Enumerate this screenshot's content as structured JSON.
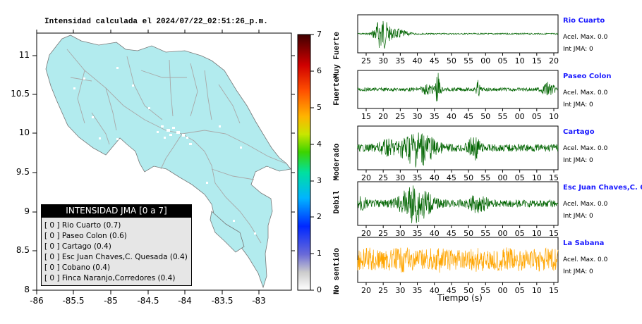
{
  "map": {
    "title": "Intensidad calculada el 2024/07/22_02:51:26_p.m.",
    "x_ticks": [
      "-86",
      "-85.5",
      "-85",
      "-84.5",
      "-84",
      "-83.5",
      "-83"
    ],
    "y_ticks": [
      "11",
      "10.5",
      "10",
      "9.5",
      "9",
      "8.5",
      "8"
    ],
    "land_color": "#b2ebee"
  },
  "colorbar": {
    "ticks": [
      "7",
      "6",
      "5",
      "4",
      "3",
      "2",
      "1",
      "0"
    ],
    "labels": [
      "Muy Fuerte",
      "Fuerte",
      "Moderado",
      "Debil",
      "No sentido"
    ]
  },
  "legend": {
    "title": "INTENSIDAD JMA [0 a 7]",
    "entries": [
      "[ 0 ] Rio Cuarto (0.7)",
      "[ 0 ] Paseo Colon (0.6)",
      "[ 0 ] Cartago (0.4)",
      "[ 0 ] Esc Juan Chaves,C. Quesada (0.4)",
      "[ 0 ] Cobano (0.4)",
      "[ 0 ] Finca Naranjo,Corredores (0.4)"
    ]
  },
  "seismograms": {
    "xlabel": "Tiempo (s)",
    "stations": [
      {
        "name": "Rio Cuarto",
        "accel": "Acel. Max. 0.0",
        "int": "Int JMA: 0",
        "color": "#006400",
        "ticks": [
          "25",
          "30",
          "35",
          "40",
          "45",
          "50",
          "55",
          "00",
          "05",
          "10",
          "15",
          "20"
        ]
      },
      {
        "name": "Paseo Colon",
        "accel": "Acel. Max. 0.0",
        "int": "Int JMA: 0",
        "color": "#006400",
        "ticks": [
          "15",
          "20",
          "25",
          "30",
          "35",
          "40",
          "45",
          "50",
          "55",
          "00",
          "05",
          "10"
        ]
      },
      {
        "name": "Cartago",
        "accel": "Acel. Max. 0.0",
        "int": "Int JMA: 0",
        "color": "#006400",
        "ticks": [
          "20",
          "25",
          "30",
          "35",
          "40",
          "45",
          "50",
          "55",
          "00",
          "05",
          "10",
          "15"
        ]
      },
      {
        "name": "Esc Juan Chaves,C. Qu",
        "accel": "Acel. Max. 0.0",
        "int": "Int JMA: 0",
        "color": "#006400",
        "ticks": [
          "20",
          "25",
          "30",
          "35",
          "40",
          "45",
          "50",
          "55",
          "00",
          "05",
          "10",
          "15"
        ]
      },
      {
        "name": "La Sabana",
        "accel": "Acel. Max. 0.0",
        "int": "Int JMA: 0",
        "color": "#ffa500",
        "ticks": [
          "20",
          "25",
          "30",
          "35",
          "40",
          "45",
          "50",
          "55",
          "00",
          "05",
          "10",
          "15"
        ]
      }
    ]
  },
  "chart_data": {
    "type": "scatter",
    "title": "Intensidad calculada el 2024/07/22_02:51:26_p.m.",
    "xlim": [
      -86,
      -82.6
    ],
    "ylim": [
      8,
      11.3
    ],
    "colorbar_range": [
      0,
      7
    ]
  }
}
